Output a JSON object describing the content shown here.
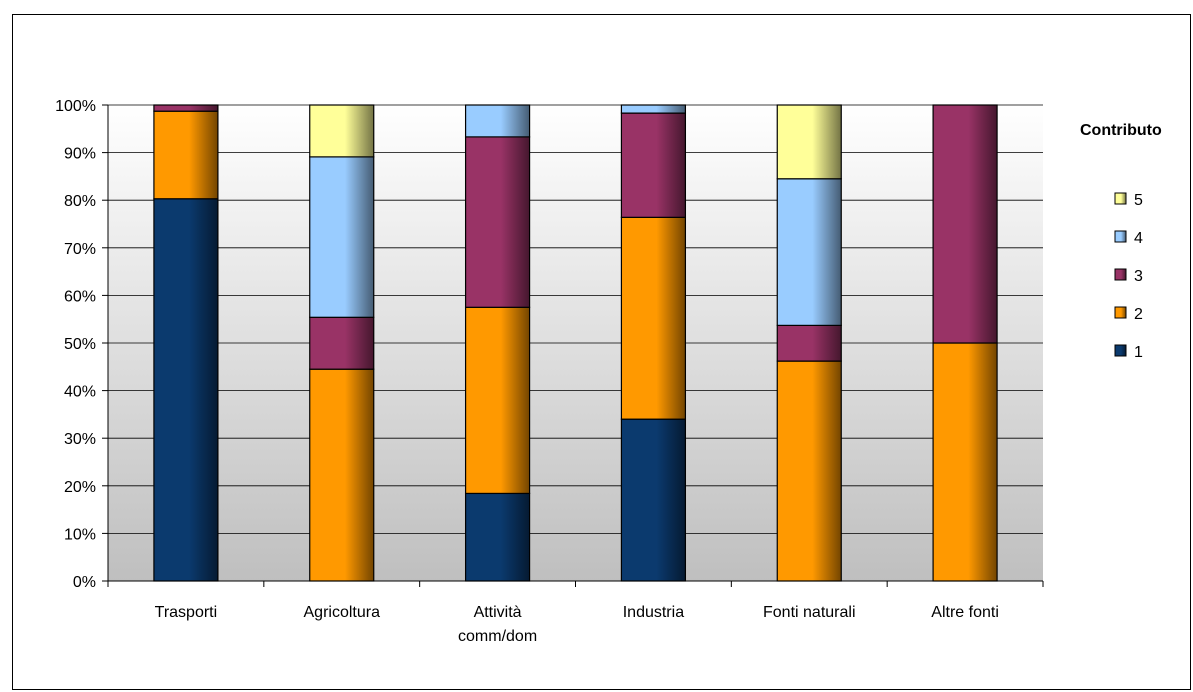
{
  "chart_data": {
    "type": "bar",
    "stacked": true,
    "percent": true,
    "categories": [
      [
        "Trasporti"
      ],
      [
        "Agricoltura"
      ],
      [
        "Attività",
        "comm/dom"
      ],
      [
        "Industria"
      ],
      [
        "Fonti naturali"
      ],
      [
        "Altre fonti"
      ]
    ],
    "series": [
      {
        "name": "1",
        "color": "#0b3a6e",
        "values": [
          80.3,
          0,
          18.4,
          34.0,
          0,
          0
        ]
      },
      {
        "name": "2",
        "color": "#ff9900",
        "values": [
          18.4,
          44.5,
          39.1,
          42.4,
          46.2,
          50.0
        ]
      },
      {
        "name": "3",
        "color": "#993366",
        "values": [
          1.3,
          10.9,
          35.8,
          21.9,
          7.5,
          50.0
        ]
      },
      {
        "name": "4",
        "color": "#99ccff",
        "values": [
          0,
          33.7,
          6.7,
          1.7,
          30.8,
          0
        ]
      },
      {
        "name": "5",
        "color": "#ffff99",
        "values": [
          0,
          10.9,
          0,
          0,
          15.5,
          0
        ]
      }
    ],
    "ylim": [
      0,
      100
    ],
    "yticks": [
      "0%",
      "10%",
      "20%",
      "30%",
      "40%",
      "50%",
      "60%",
      "70%",
      "80%",
      "90%",
      "100%"
    ],
    "grid": true,
    "legend": {
      "title": "Contributo",
      "placement": "right",
      "order": [
        "5",
        "4",
        "3",
        "2",
        "1"
      ]
    }
  }
}
